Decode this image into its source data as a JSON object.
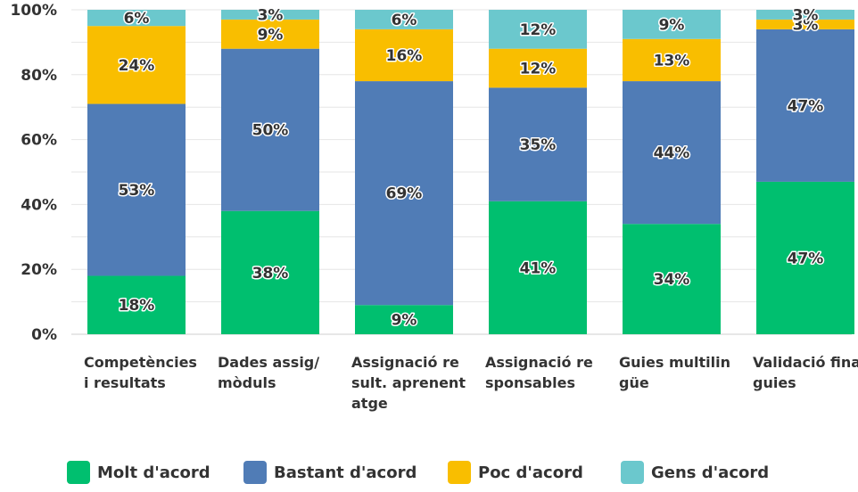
{
  "chart_data": {
    "type": "bar",
    "stacked": true,
    "categories": [
      "Competències i resultats",
      "Dades assig/mòduls",
      "Assignació result. aprenentatge",
      "Assignació responsables",
      "Guies multilingüe",
      "Validació final guies"
    ],
    "series": [
      {
        "name": "Molt d'acord",
        "color": "#00BF6F",
        "values": [
          18,
          38,
          9,
          41,
          34,
          47
        ]
      },
      {
        "name": "Bastant d'acord",
        "color": "#507CB6",
        "values": [
          53,
          50,
          69,
          35,
          44,
          47
        ]
      },
      {
        "name": "Poc d'acord",
        "color": "#F9BE00",
        "values": [
          24,
          9,
          16,
          12,
          13,
          3
        ]
      },
      {
        "name": "Gens d'acord",
        "color": "#6BC8CD",
        "values": [
          6,
          3,
          6,
          12,
          9,
          3
        ]
      }
    ],
    "value_labels": [
      [
        "18%",
        "38%",
        "9%",
        "41%",
        "34%",
        "47%"
      ],
      [
        "53%",
        "50%",
        "69%",
        "35%",
        "44%",
        "47%"
      ],
      [
        "24%",
        "9%",
        "16%",
        "12%",
        "13%",
        "3%"
      ],
      [
        "6%",
        "3%",
        "6%",
        "12%",
        "9%",
        "3%"
      ]
    ],
    "ylim": [
      0,
      100
    ],
    "yticks": [
      "0%",
      "20%",
      "40%",
      "60%",
      "80%",
      "100%"
    ],
    "grid": true,
    "legend_position": "bottom"
  }
}
